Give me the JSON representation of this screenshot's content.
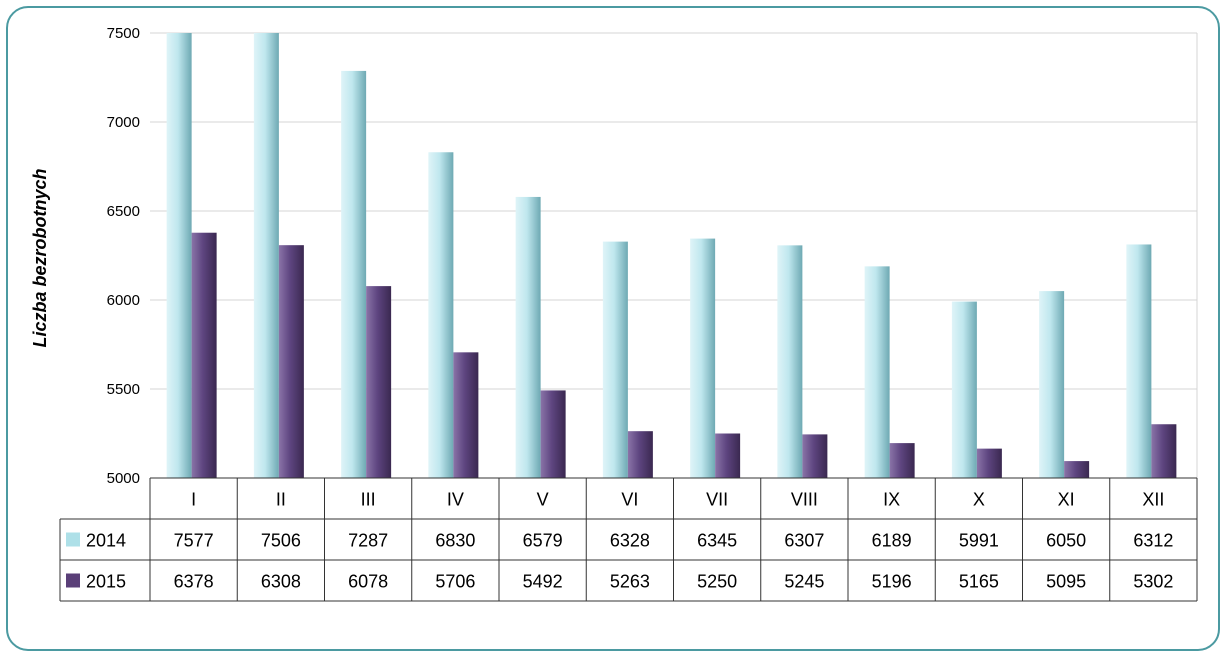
{
  "chart_data": {
    "type": "bar",
    "ylabel": "Liczba bezrobotnych",
    "xlabel": "",
    "ylim": [
      5000,
      7500
    ],
    "yticks": [
      5000,
      5500,
      6000,
      6500,
      7000,
      7500
    ],
    "grid": true,
    "legend": "data-table-left",
    "categories": [
      "I",
      "II",
      "III",
      "IV",
      "V",
      "VI",
      "VII",
      "VIII",
      "IX",
      "X",
      "XI",
      "XII"
    ],
    "series": [
      {
        "name": "2014",
        "color": "#aee0e8",
        "values": [
          7577,
          7506,
          7287,
          6830,
          6579,
          6328,
          6345,
          6307,
          6189,
          5991,
          6050,
          6312
        ]
      },
      {
        "name": "2015",
        "color": "#5a3f78",
        "values": [
          6378,
          6308,
          6078,
          5706,
          5492,
          5263,
          5250,
          5245,
          5196,
          5165,
          5095,
          5302
        ]
      }
    ]
  }
}
